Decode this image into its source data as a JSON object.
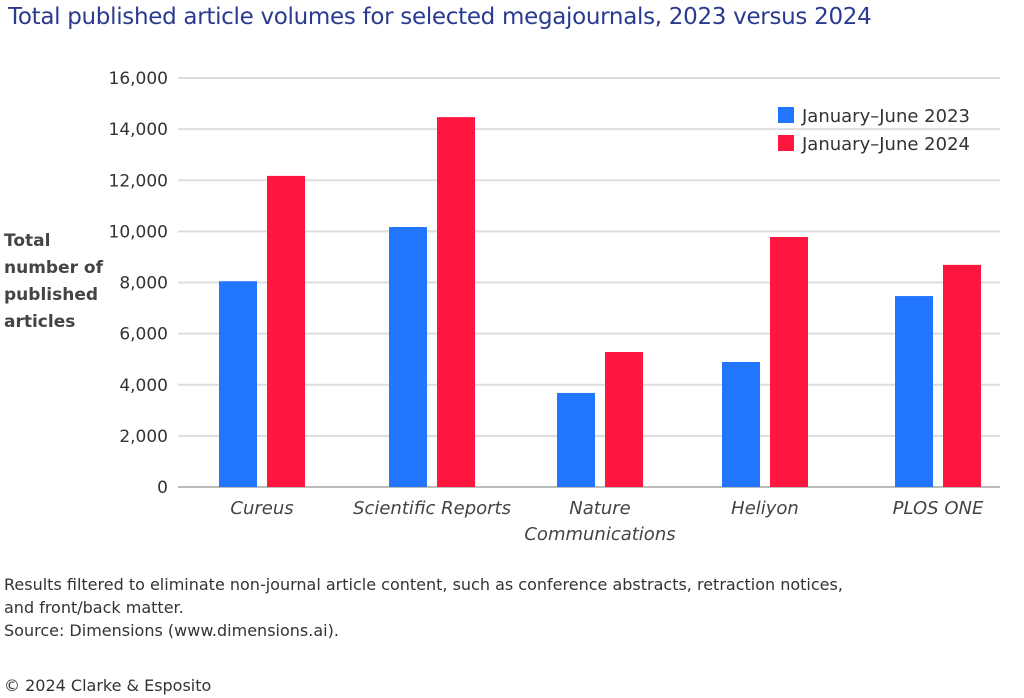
{
  "title": "Total published article volumes for selected megajournals, 2023 versus 2024",
  "chart_data": {
    "type": "bar",
    "title": "Total published article volumes for selected megajournals, 2023 versus 2024",
    "ylabel": "Total number of published articles",
    "xlabel": "",
    "categories": [
      "Cureus",
      "Scientific Reports",
      "Nature Communications",
      "Heliyon",
      "PLOS ONE"
    ],
    "series": [
      {
        "name": "January–June 2023",
        "color": "#2175ff",
        "values": [
          8050,
          10170,
          3680,
          4890,
          7470
        ]
      },
      {
        "name": "January–June 2024",
        "color": "#ff163f",
        "values": [
          12170,
          14470,
          5280,
          9780,
          8690
        ]
      }
    ],
    "ylim": [
      0,
      16000
    ],
    "yticks": [
      "0",
      "2,000",
      "4,000",
      "6,000",
      "8,000",
      "10,000",
      "12,000",
      "14,000",
      "16,000"
    ],
    "grid": true,
    "legend": "top-right"
  },
  "notes": [
    "Results filtered to eliminate non-journal article content, such as conference abstracts, retraction notices,",
    "and front/back matter.",
    "Source: Dimensions (www.dimensions.ai)."
  ],
  "copyright": "© 2024 Clarke & Esposito"
}
